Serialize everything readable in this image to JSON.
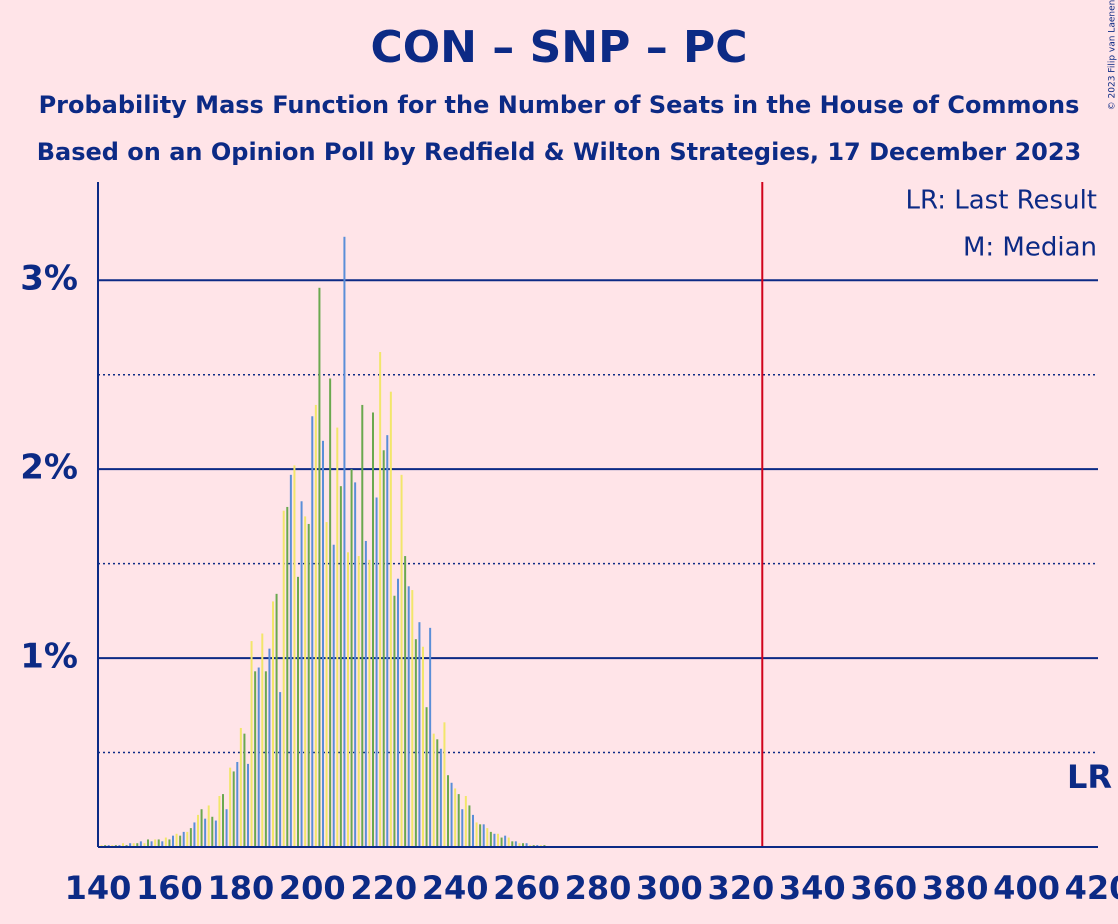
{
  "chart_data": {
    "type": "histogram",
    "title": "CON – SNP – PC",
    "subtitle": [
      "Probability Mass Function for the Number of Seats in the House of Commons",
      "Based on an Opinion Poll by Redfield & Wilton Strategies, 17 December 2023"
    ],
    "legend": [
      "LR: Last Result",
      "M: Median"
    ],
    "last_result": 326,
    "last_result_label": "LR",
    "copyright": "© 2023 Filip van Laenen",
    "colors": [
      "#5a8ed8",
      "#f2e66a",
      "#6aa84f"
    ],
    "x": [
      140,
      141,
      142,
      143,
      144,
      145,
      146,
      147,
      148,
      149,
      150,
      151,
      152,
      153,
      154,
      155,
      156,
      157,
      158,
      159,
      160,
      161,
      162,
      163,
      164,
      165,
      166,
      167,
      168,
      169,
      170,
      171,
      172,
      173,
      174,
      175,
      176,
      177,
      178,
      179,
      180,
      181,
      182,
      183,
      184,
      185,
      186,
      187,
      188,
      189,
      190,
      191,
      192,
      193,
      194,
      195,
      196,
      197,
      198,
      199,
      200,
      201,
      202,
      203,
      204,
      205,
      206,
      207,
      208,
      209,
      210,
      211,
      212,
      213,
      214,
      215,
      216,
      217,
      218,
      219,
      220,
      221,
      222,
      223,
      224,
      225,
      226,
      227,
      228,
      229,
      230,
      231,
      232,
      233,
      234,
      235,
      236,
      237,
      238,
      239,
      240,
      241,
      242,
      243,
      244,
      245,
      246,
      247,
      248,
      249,
      250,
      251,
      252,
      253,
      254,
      255,
      256,
      257,
      258,
      259,
      260,
      261,
      262,
      263,
      264,
      265
    ],
    "values": [
      0.01,
      0.01,
      0.01,
      0.01,
      0.01,
      0.01,
      0.01,
      0.02,
      0.01,
      0.02,
      0.02,
      0.02,
      0.03,
      0.02,
      0.04,
      0.03,
      0.04,
      0.04,
      0.03,
      0.05,
      0.04,
      0.06,
      0.07,
      0.06,
      0.08,
      0.08,
      0.1,
      0.13,
      0.17,
      0.2,
      0.15,
      0.22,
      0.16,
      0.14,
      0.27,
      0.28,
      0.2,
      0.42,
      0.4,
      0.45,
      0.63,
      0.6,
      0.44,
      1.09,
      0.93,
      0.95,
      1.13,
      0.93,
      1.05,
      1.3,
      1.34,
      0.82,
      1.78,
      1.8,
      1.97,
      2.02,
      1.43,
      1.83,
      1.75,
      1.71,
      2.28,
      2.34,
      2.96,
      2.15,
      1.72,
      2.48,
      1.6,
      2.22,
      1.91,
      3.23,
      1.56,
      2.0,
      1.93,
      1.54,
      2.34,
      1.62,
      1.52,
      2.3,
      1.85,
      2.62,
      2.1,
      2.18,
      2.41,
      1.33,
      1.42,
      1.97,
      1.54,
      1.38,
      1.36,
      1.1,
      1.19,
      1.06,
      0.74,
      1.16,
      0.6,
      0.57,
      0.52,
      0.66,
      0.38,
      0.34,
      0.31,
      0.28,
      0.2,
      0.27,
      0.22,
      0.17,
      0.13,
      0.12,
      0.12,
      0.1,
      0.08,
      0.07,
      0.07,
      0.05,
      0.06,
      0.05,
      0.03,
      0.03,
      0.02,
      0.02,
      0.02,
      0.01,
      0.01,
      0.01,
      0.01,
      0.01
    ],
    "xlim": [
      140,
      420
    ],
    "xticks": [
      140,
      160,
      180,
      200,
      220,
      240,
      260,
      280,
      300,
      320,
      340,
      360,
      380,
      400,
      420
    ],
    "ylim": [
      0,
      3.52
    ],
    "yticks": [
      {
        "value": 1,
        "label": "1%"
      },
      {
        "value": 2,
        "label": "2%"
      },
      {
        "value": 3,
        "label": "3%"
      }
    ],
    "minor_yticks": [
      0.5,
      1.5,
      2.5
    ],
    "grid": true
  }
}
